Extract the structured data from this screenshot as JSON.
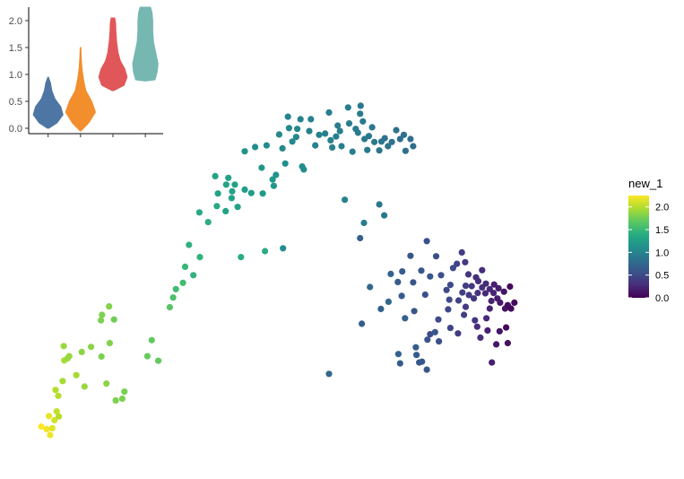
{
  "chart_data": [
    {
      "type": "scatter",
      "title": "",
      "xlabel": "",
      "ylabel": "",
      "axes_visible": false,
      "grid": false,
      "color_scale": "viridis",
      "color_range": [
        0,
        2.25
      ],
      "legend": {
        "title": "new_1",
        "position": "right",
        "ticks": [
          "0.0",
          "0.5",
          "1.0",
          "1.5",
          "2.0"
        ],
        "tick_values": [
          0,
          0.5,
          1.0,
          1.5,
          2.0
        ]
      },
      "x_range": [
        0,
        100
      ],
      "y_range": [
        0,
        100
      ],
      "points": [
        [
          1.0,
          5.2,
          2.25
        ],
        [
          2.0,
          4.6,
          2.2
        ],
        [
          2.4,
          7.7,
          2.18
        ],
        [
          2.6,
          3.2,
          2.2
        ],
        [
          3.0,
          4.8,
          2.15
        ],
        [
          3.4,
          6.7,
          2.1
        ],
        [
          3.8,
          8.8,
          2.05
        ],
        [
          4.1,
          12.5,
          2.0
        ],
        [
          4.2,
          7.6,
          2.0
        ],
        [
          4.9,
          16.0,
          1.95
        ],
        [
          5.1,
          24.3,
          1.9
        ],
        [
          3.6,
          13.9,
          2.0
        ],
        [
          5.2,
          20.9,
          1.95
        ],
        [
          5.8,
          21.4,
          1.9
        ],
        [
          6.1,
          21.9,
          1.9
        ],
        [
          7.4,
          17.4,
          1.95
        ],
        [
          8.4,
          22.9,
          1.85
        ],
        [
          8.9,
          14.7,
          1.9
        ],
        [
          10.1,
          24.1,
          1.85
        ],
        [
          11.9,
          30.4,
          1.8
        ],
        [
          12.1,
          31.7,
          1.8
        ],
        [
          12.9,
          15.4,
          1.85
        ],
        [
          13.4,
          33.7,
          1.82
        ],
        [
          12.0,
          21.8,
          1.8
        ],
        [
          13.5,
          25.0,
          1.82
        ],
        [
          14.6,
          11.4,
          1.8
        ],
        [
          15.8,
          11.8,
          1.8
        ],
        [
          14.3,
          30.6,
          1.75
        ],
        [
          16.2,
          13.5,
          1.78
        ],
        [
          20.4,
          21.9,
          1.72
        ],
        [
          21.2,
          25.7,
          1.7
        ],
        [
          22.4,
          20.8,
          1.7
        ],
        [
          24.5,
          33.5,
          1.65
        ],
        [
          25.1,
          35.8,
          1.6
        ],
        [
          25.6,
          37.8,
          1.55
        ],
        [
          26.9,
          39.3,
          1.55
        ],
        [
          27.3,
          43.1,
          1.5
        ],
        [
          28.0,
          48.3,
          1.45
        ],
        [
          28.8,
          41.1,
          1.45
        ],
        [
          29.9,
          56.0,
          1.35
        ],
        [
          30.0,
          45.4,
          1.45
        ],
        [
          31.5,
          53.7,
          1.4
        ],
        [
          32.8,
          64.6,
          1.3
        ],
        [
          33.1,
          57.5,
          1.35
        ],
        [
          33.3,
          60.5,
          1.3
        ],
        [
          34.7,
          56.3,
          1.3
        ],
        [
          34.8,
          62.6,
          1.3
        ],
        [
          35.2,
          64.2,
          1.28
        ],
        [
          35.8,
          59.4,
          1.3
        ],
        [
          35.9,
          61.0,
          1.3
        ],
        [
          36.4,
          62.6,
          1.28
        ],
        [
          36.9,
          57.3,
          1.3
        ],
        [
          37.5,
          45.4,
          1.4
        ],
        [
          38.2,
          61.4,
          1.25
        ],
        [
          38.2,
          70.5,
          1.15
        ],
        [
          39.4,
          60.6,
          1.25
        ],
        [
          40.1,
          71.5,
          1.12
        ],
        [
          41.3,
          66.6,
          1.18
        ],
        [
          41.5,
          60.5,
          1.22
        ],
        [
          41.9,
          46.8,
          1.4
        ],
        [
          42.2,
          71.9,
          1.1
        ],
        [
          43.3,
          63.8,
          1.2
        ],
        [
          43.5,
          62.3,
          1.18
        ],
        [
          43.9,
          64.9,
          1.15
        ],
        [
          44.5,
          74.5,
          1.05
        ],
        [
          45.1,
          71.2,
          1.08
        ],
        [
          45.6,
          67.6,
          1.12
        ],
        [
          46.1,
          78.7,
          1.02
        ],
        [
          46.3,
          76.0,
          1.05
        ],
        [
          46.9,
          72.8,
          1.05
        ],
        [
          47.6,
          73.9,
          1.05
        ],
        [
          47.8,
          75.8,
          1.05
        ],
        [
          48.4,
          78.1,
          1.0
        ],
        [
          48.7,
          66.9,
          1.1
        ],
        [
          49.0,
          66.2,
          1.1
        ],
        [
          50.0,
          75.3,
          0.98
        ],
        [
          50.3,
          78.1,
          0.98
        ],
        [
          51.1,
          71.9,
          1.0
        ],
        [
          51.8,
          74.4,
          1.0
        ],
        [
          52.9,
          74.7,
          0.98
        ],
        [
          53.6,
          79.7,
          0.95
        ],
        [
          53.9,
          73.1,
          0.98
        ],
        [
          54.2,
          71.4,
          0.98
        ],
        [
          54.9,
          74.0,
          0.97
        ],
        [
          55.2,
          76.6,
          0.95
        ],
        [
          55.6,
          75.3,
          0.95
        ],
        [
          55.9,
          71.7,
          0.97
        ],
        [
          57.1,
          80.9,
          0.95
        ],
        [
          57.3,
          77.1,
          0.95
        ],
        [
          57.9,
          70.4,
          0.95
        ],
        [
          58.5,
          75.8,
          0.93
        ],
        [
          58.9,
          74.9,
          0.93
        ],
        [
          59.3,
          79.4,
          0.93
        ],
        [
          59.4,
          81.3,
          0.9
        ],
        [
          59.8,
          77.6,
          0.92
        ],
        [
          60.1,
          73.4,
          0.9
        ],
        [
          60.6,
          70.8,
          0.9
        ],
        [
          60.9,
          74.1,
          0.9
        ],
        [
          61.5,
          76.2,
          0.9
        ],
        [
          61.9,
          72.7,
          0.9
        ],
        [
          62.8,
          70.7,
          0.88
        ],
        [
          63.2,
          72.8,
          0.88
        ],
        [
          63.8,
          73.6,
          0.85
        ],
        [
          64.4,
          71.7,
          0.85
        ],
        [
          65.1,
          72.7,
          0.85
        ],
        [
          65.9,
          75.5,
          0.85
        ],
        [
          66.6,
          73.4,
          0.82
        ],
        [
          67.3,
          74.4,
          0.82
        ],
        [
          67.6,
          70.6,
          0.82
        ],
        [
          68.5,
          73.4,
          0.8
        ],
        [
          69.0,
          71.7,
          0.8
        ],
        [
          56.5,
          59.0,
          1.0
        ],
        [
          60.0,
          53.5,
          0.95
        ],
        [
          62.8,
          57.9,
          0.9
        ],
        [
          63.7,
          55.3,
          0.9
        ],
        [
          45.2,
          47.5,
          1.1
        ],
        [
          59.3,
          49.9,
          0.7
        ],
        [
          61.1,
          38.3,
          0.75
        ],
        [
          64.9,
          41.4,
          0.7
        ],
        [
          66.2,
          39.5,
          0.65
        ],
        [
          67.0,
          42.0,
          0.65
        ],
        [
          70.5,
          42.2,
          0.62
        ],
        [
          69.0,
          39.4,
          0.6
        ],
        [
          68.5,
          45.7,
          0.6
        ],
        [
          71.2,
          36.5,
          0.55
        ],
        [
          72.1,
          40.8,
          0.6
        ],
        [
          71.5,
          49.2,
          0.55
        ],
        [
          73.2,
          45.6,
          0.55
        ],
        [
          74.1,
          41.1,
          0.55
        ],
        [
          75.1,
          37.6,
          0.5
        ],
        [
          75.6,
          35.3,
          0.5
        ],
        [
          75.8,
          38.8,
          0.5
        ],
        [
          76.3,
          42.8,
          0.5
        ],
        [
          77.0,
          43.8,
          0.45
        ],
        [
          77.9,
          46.5,
          0.4
        ],
        [
          78.5,
          44.2,
          0.38
        ],
        [
          79.1,
          41.3,
          0.35
        ],
        [
          79.7,
          38.5,
          0.35
        ],
        [
          80.5,
          40.6,
          0.3
        ],
        [
          80.9,
          39.7,
          0.3
        ],
        [
          81.6,
          42.3,
          0.28
        ],
        [
          82.2,
          36.8,
          0.25
        ],
        [
          83.0,
          33.2,
          0.22
        ],
        [
          83.3,
          35.0,
          0.22
        ],
        [
          83.8,
          38.9,
          0.2
        ],
        [
          84.4,
          35.6,
          0.18
        ],
        [
          84.9,
          34.6,
          0.15
        ],
        [
          85.8,
          33.2,
          0.1
        ],
        [
          86.3,
          34.0,
          0.08
        ],
        [
          86.9,
          33.2,
          0.05
        ],
        [
          77.3,
          35.1,
          0.45
        ],
        [
          78.0,
          37.0,
          0.42
        ],
        [
          78.6,
          38.6,
          0.4
        ],
        [
          79.2,
          36.4,
          0.38
        ],
        [
          80.1,
          35.6,
          0.35
        ],
        [
          80.8,
          36.9,
          0.32
        ],
        [
          81.6,
          38.2,
          0.3
        ],
        [
          82.3,
          39.1,
          0.28
        ],
        [
          83.0,
          37.8,
          0.25
        ],
        [
          83.7,
          36.9,
          0.22
        ],
        [
          84.6,
          38.0,
          0.18
        ],
        [
          85.6,
          37.2,
          0.12
        ],
        [
          86.7,
          38.4,
          0.05
        ],
        [
          87.5,
          34.6,
          0.05
        ],
        [
          73.6,
          30.6,
          0.5
        ],
        [
          75.8,
          28.6,
          0.45
        ],
        [
          77.2,
          27.3,
          0.4
        ],
        [
          80.7,
          28.9,
          0.28
        ],
        [
          81.3,
          26.3,
          0.3
        ],
        [
          82.6,
          28.0,
          0.2
        ],
        [
          84.2,
          24.7,
          0.15
        ],
        [
          86.3,
          25.0,
          0.1
        ],
        [
          71.6,
          25.8,
          0.6
        ],
        [
          73.7,
          25.4,
          0.55
        ],
        [
          66.9,
          36.2,
          0.65
        ],
        [
          69.2,
          32.6,
          0.6
        ],
        [
          70.6,
          20.6,
          0.6
        ],
        [
          64.5,
          34.8,
          0.75
        ],
        [
          67.5,
          30.9,
          0.68
        ],
        [
          71.5,
          18.7,
          0.6
        ],
        [
          72.1,
          27.1,
          0.52
        ],
        [
          75.4,
          33.0,
          0.48
        ],
        [
          78.3,
          31.7,
          0.42
        ],
        [
          80.3,
          30.4,
          0.35
        ],
        [
          82.4,
          30.9,
          0.25
        ],
        [
          84.8,
          27.8,
          0.12
        ],
        [
          86.0,
          28.7,
          0.05
        ],
        [
          83.4,
          20.4,
          0.2
        ],
        [
          78.6,
          33.6,
          0.38
        ],
        [
          53.6,
          17.7,
          0.75
        ],
        [
          59.6,
          29.6,
          0.65
        ],
        [
          63.1,
          33.1,
          0.7
        ],
        [
          66.3,
          22.4,
          0.7
        ],
        [
          69.6,
          22.2,
          0.65
        ],
        [
          70.1,
          20.4,
          0.62
        ],
        [
          69.5,
          24.0,
          0.65
        ],
        [
          66.6,
          20.2,
          0.65
        ],
        [
          73.0,
          27.6,
          0.6
        ]
      ]
    },
    {
      "type": "violin",
      "title": "",
      "xlabel": "",
      "ylabel": "",
      "ylim": [
        -0.1,
        2.25
      ],
      "y_ticks": [
        "0.0",
        "0.5",
        "1.0",
        "1.5",
        "2.0"
      ],
      "y_tick_values": [
        0,
        0.5,
        1.0,
        1.5,
        2.0
      ],
      "colors": [
        "#4e76a4",
        "#f28e2b",
        "#e15759",
        "#76b7b2"
      ],
      "series": [
        {
          "min": 0.0,
          "max": 0.95,
          "profile": [
            [
              0.0,
              0.05
            ],
            [
              0.1,
              0.6
            ],
            [
              0.25,
              1.0
            ],
            [
              0.4,
              0.85
            ],
            [
              0.55,
              0.45
            ],
            [
              0.7,
              0.25
            ],
            [
              0.85,
              0.15
            ],
            [
              0.95,
              0.02
            ]
          ]
        },
        {
          "min": -0.05,
          "max": 1.5,
          "profile": [
            [
              -0.05,
              0.02
            ],
            [
              0.1,
              0.55
            ],
            [
              0.3,
              1.0
            ],
            [
              0.5,
              0.75
            ],
            [
              0.7,
              0.35
            ],
            [
              0.9,
              0.2
            ],
            [
              1.1,
              0.1
            ],
            [
              1.3,
              0.05
            ],
            [
              1.5,
              0.02
            ]
          ]
        },
        {
          "min": 0.7,
          "max": 2.05,
          "profile": [
            [
              0.7,
              0.05
            ],
            [
              0.8,
              0.75
            ],
            [
              0.95,
              0.95
            ],
            [
              1.1,
              0.8
            ],
            [
              1.25,
              0.5
            ],
            [
              1.4,
              0.35
            ],
            [
              1.6,
              0.25
            ],
            [
              1.8,
              0.2
            ],
            [
              1.95,
              0.18
            ],
            [
              2.05,
              0.12
            ]
          ]
        },
        {
          "min": 0.88,
          "max": 2.25,
          "profile": [
            [
              0.88,
              0.05
            ],
            [
              0.9,
              0.65
            ],
            [
              1.05,
              0.8
            ],
            [
              1.2,
              0.85
            ],
            [
              1.4,
              0.7
            ],
            [
              1.6,
              0.55
            ],
            [
              1.8,
              0.5
            ],
            [
              2.0,
              0.5
            ],
            [
              2.15,
              0.45
            ],
            [
              2.25,
              0.35
            ]
          ]
        }
      ]
    }
  ]
}
